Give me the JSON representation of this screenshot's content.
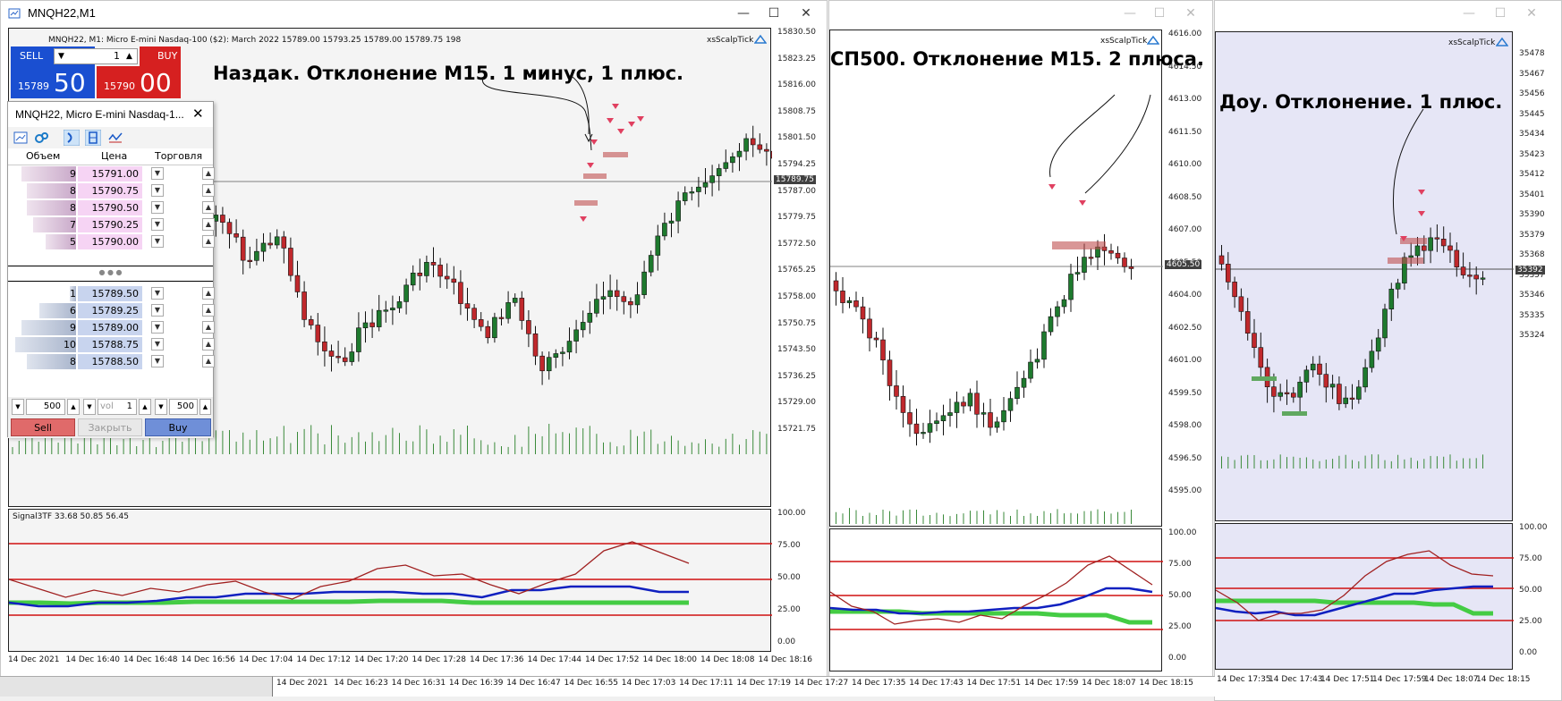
{
  "window1": {
    "title": "MNQH22,M1",
    "header_info": "MNQH22, M1:  Micro E-mini Nasdaq-100 ($2): March 2022  15789.00  15793.25  15789.00  15789.75  198",
    "provider": "xsScalpTick",
    "annotation": "Наздак. Отклонение M15. 1 минус, 1 плюс.",
    "price_labels": [
      "15830.50",
      "15823.25",
      "15816.00",
      "15808.75",
      "15801.50",
      "15794.25",
      "15787.00",
      "15779.75",
      "15772.50",
      "15765.25",
      "15758.00",
      "15750.75",
      "15743.50",
      "15736.25",
      "15729.00",
      "15721.75"
    ],
    "current_price": "15789.75",
    "indicator_label": "Signal3TF 33.68 50.85 56.45",
    "indicator_levels": [
      "100.00",
      "75.00",
      "50.00",
      "25.00",
      "0.00"
    ],
    "time_labels": [
      "14 Dec 2021",
      "14 Dec 16:40",
      "14 Dec 16:48",
      "14 Dec 16:56",
      "14 Dec 17:04",
      "14 Dec 17:12",
      "14 Dec 17:20",
      "14 Dec 17:28",
      "14 Dec 17:36",
      "14 Dec 17:44",
      "14 Dec 17:52",
      "14 Dec 18:00",
      "14 Dec 18:08",
      "14 Dec 18:16"
    ]
  },
  "trade_panel": {
    "sell_label": "SELL",
    "buy_label": "BUY",
    "lot_value": "1",
    "sell_price_small": "15789",
    "sell_price_big": "50",
    "buy_price_small": "15790",
    "buy_price_big": "00"
  },
  "dom": {
    "title": "MNQH22, Micro E-mini Nasdaq-1...",
    "col_volume": "Объем",
    "col_price": "Цена",
    "col_trade": "Торговля",
    "asks": [
      {
        "vol": "9",
        "price": "15791.00",
        "fill": 0.85
      },
      {
        "vol": "8",
        "price": "15790.75",
        "fill": 0.76
      },
      {
        "vol": "8",
        "price": "15790.50",
        "fill": 0.76
      },
      {
        "vol": "7",
        "price": "15790.25",
        "fill": 0.66
      },
      {
        "vol": "5",
        "price": "15790.00",
        "fill": 0.47
      }
    ],
    "bids": [
      {
        "vol": "1",
        "price": "15789.50",
        "fill": 0.1
      },
      {
        "vol": "6",
        "price": "15789.25",
        "fill": 0.57
      },
      {
        "vol": "9",
        "price": "15789.00",
        "fill": 0.85
      },
      {
        "vol": "10",
        "price": "15788.75",
        "fill": 0.95
      },
      {
        "vol": "8",
        "price": "15788.50",
        "fill": 0.76
      }
    ],
    "separator": "● ● ●",
    "lot_left": "500",
    "vol_placeholder": "vol",
    "vol_value": "1",
    "lot_right": "500",
    "sell_btn": "Sell",
    "close_btn": "Закрыть",
    "buy_btn": "Buy"
  },
  "window2": {
    "provider": "xsScalpTick",
    "annotation": "СП500. Отклонение M15. 2 плюса.",
    "price_labels": [
      "4616.00",
      "4614.50",
      "4613.00",
      "4611.50",
      "4610.00",
      "4608.50",
      "4607.00",
      "4605.50",
      "4604.00",
      "4602.50",
      "4601.00",
      "4599.50",
      "4598.00",
      "4596.50",
      "4595.00"
    ],
    "current_price": "4605.50",
    "indicator_levels": [
      "100.00",
      "75.00",
      "50.00",
      "25.00",
      "0.00"
    ]
  },
  "window3": {
    "provider": "xsScalpTick",
    "annotation": "Доу. Отклонение. 1 плюс.",
    "price_labels": [
      "35478",
      "35467",
      "35456",
      "35445",
      "35434",
      "35423",
      "35412",
      "35401",
      "35390",
      "35379",
      "35368",
      "35357",
      "35346",
      "35335",
      "35324"
    ],
    "current_price": "35392",
    "indicator_levels": [
      "100.00",
      "75.00",
      "50.00",
      "25.00",
      "0.00"
    ],
    "time_labels": [
      "14 Dec 17:35",
      "14 Dec 17:43",
      "14 Dec 17:51",
      "14 Dec 17:59",
      "14 Dec 18:07",
      "14 Dec 18:15"
    ]
  },
  "bottom_timeline": [
    "14 Dec 2021",
    "14 Dec 16:23",
    "14 Dec 16:31",
    "14 Dec 16:39",
    "14 Dec 16:47",
    "14 Dec 16:55",
    "14 Dec 17:03",
    "14 Dec 17:11",
    "14 Dec 17:19",
    "14 Dec 17:27",
    "14 Dec 17:35",
    "14 Dec 17:43",
    "14 Dec 17:51",
    "14 Dec 17:59",
    "14 Dec 18:07",
    "14 Dec 18:15"
  ],
  "colors": {
    "bull": "#1e7a2e",
    "bear": "#c0282c",
    "bg2": "#ffffff",
    "bg3": "#e6e6f6",
    "red_line": "#d01010",
    "blue_line": "#1020c0",
    "green_line": "#44cc44",
    "osc": "#a02020"
  }
}
